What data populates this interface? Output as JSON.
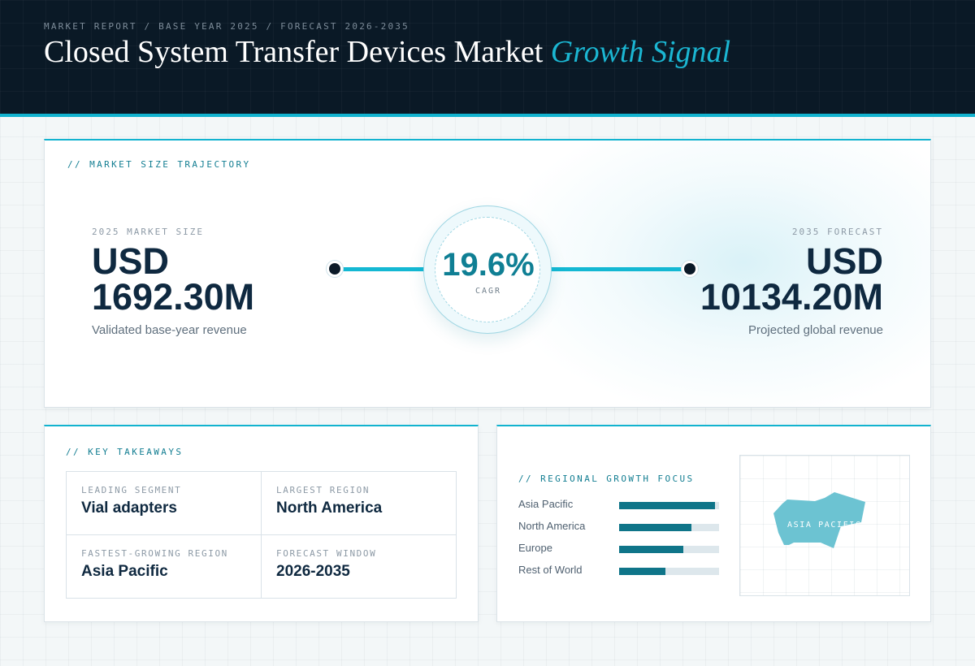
{
  "header": {
    "eyebrow": "MARKET REPORT / BASE YEAR 2025 / FORECAST 2026-2035",
    "title_main": "Closed System Transfer Devices Market",
    "title_accent": "Growth Signal"
  },
  "trajectory": {
    "section_label": "// MARKET SIZE TRAJECTORY",
    "base": {
      "label": "2025 MARKET SIZE",
      "currency": "USD",
      "value": "1692.30M",
      "caption": "Validated base-year revenue"
    },
    "forecast": {
      "label": "2035 FORECAST",
      "currency": "USD",
      "value": "10134.20M",
      "caption": "Projected global revenue"
    },
    "cagr": {
      "value": "19.6%",
      "label": "CAGR"
    }
  },
  "takeaways": {
    "section_label": "// KEY TAKEAWAYS",
    "items": [
      {
        "label": "LEADING SEGMENT",
        "value": "Vial adapters"
      },
      {
        "label": "LARGEST REGION",
        "value": "North America"
      },
      {
        "label": "FASTEST-GROWING REGION",
        "value": "Asia Pacific"
      },
      {
        "label": "FORECAST WINDOW",
        "value": "2026-2035"
      }
    ]
  },
  "regional": {
    "section_label": "// REGIONAL GROWTH FOCUS",
    "bars": [
      {
        "name": "Asia Pacific",
        "level": 0.96
      },
      {
        "name": "North America",
        "level": 0.72
      },
      {
        "name": "Europe",
        "level": 0.64
      },
      {
        "name": "Rest of World",
        "level": 0.46
      }
    ],
    "map_label": "ASIA PACIFIC"
  },
  "colors": {
    "accent": "#12b3cf",
    "bar_fill": "#0f7589",
    "header_bg": "#0a1926",
    "map_fill": "#6cc3d2"
  }
}
